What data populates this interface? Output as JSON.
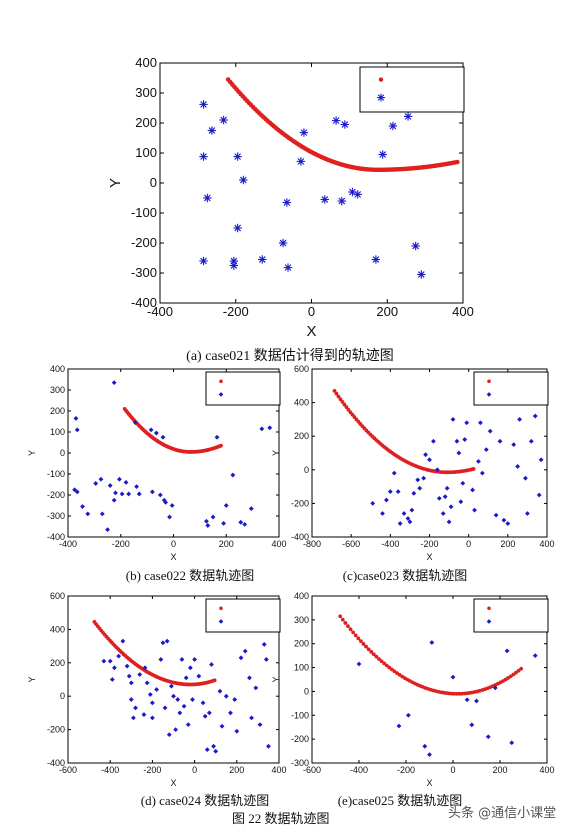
{
  "figure_caption": "图 22  数据轨迹图",
  "watermark": "头条 @通信小课堂",
  "colors": {
    "estimate": "#e02020",
    "sensor": "#1a1acc",
    "axis": "#000000"
  },
  "chart_data": [
    {
      "type": "scatter",
      "caption": "(a)   case021 数据估计得到的轨迹图",
      "xlabel": "X",
      "ylabel": "Y",
      "xlim": [
        -400,
        400
      ],
      "ylim": [
        -400,
        400
      ],
      "xticks": [
        -400,
        -200,
        0,
        200,
        400
      ],
      "yticks": [
        -400,
        -300,
        -200,
        -100,
        0,
        100,
        200,
        300,
        400
      ],
      "grid": false,
      "legend": "top-right",
      "legend_entries": [
        "",
        ""
      ],
      "trajectory": {
        "start": [
          -220,
          345
        ],
        "end": [
          385,
          70
        ],
        "min": [
          175,
          44
        ]
      },
      "points": [
        [
          -285,
          262
        ],
        [
          -263,
          175
        ],
        [
          -232,
          210
        ],
        [
          -285,
          88
        ],
        [
          -275,
          -50
        ],
        [
          -195,
          88
        ],
        [
          -180,
          10
        ],
        [
          -195,
          -150
        ],
        [
          -205,
          -260
        ],
        [
          -205,
          -275
        ],
        [
          -285,
          -260
        ],
        [
          -130,
          -255
        ],
        [
          -75,
          -200
        ],
        [
          -62,
          -282
        ],
        [
          -28,
          72
        ],
        [
          -20,
          168
        ],
        [
          -65,
          -65
        ],
        [
          35,
          -55
        ],
        [
          80,
          -60
        ],
        [
          65,
          208
        ],
        [
          88,
          195
        ],
        [
          108,
          -30
        ],
        [
          122,
          -38
        ],
        [
          170,
          -255
        ],
        [
          188,
          95
        ],
        [
          215,
          190
        ],
        [
          255,
          222
        ],
        [
          275,
          -210
        ],
        [
          290,
          -305
        ]
      ]
    },
    {
      "type": "scatter",
      "caption": "(b) case022 数据轨迹图",
      "xlabel": "X",
      "ylabel": "Y",
      "xlim": [
        -400,
        400
      ],
      "ylim": [
        -400,
        400
      ],
      "xticks": [
        -400,
        -200,
        0,
        200,
        400
      ],
      "yticks": [
        -400,
        -300,
        -200,
        -100,
        0,
        100,
        200,
        300,
        400
      ],
      "grid": false,
      "legend": "top-right",
      "legend_entries": [
        "",
        ""
      ],
      "trajectory": {
        "start": [
          -185,
          210
        ],
        "end": [
          180,
          35
        ],
        "min": [
          65,
          5
        ]
      },
      "points": [
        [
          -370,
          165
        ],
        [
          -365,
          110
        ],
        [
          -375,
          -175
        ],
        [
          -365,
          -185
        ],
        [
          -345,
          -255
        ],
        [
          -325,
          -290
        ],
        [
          -295,
          -145
        ],
        [
          -275,
          -125
        ],
        [
          -270,
          -290
        ],
        [
          -250,
          -365
        ],
        [
          -240,
          -155
        ],
        [
          -225,
          335
        ],
        [
          -225,
          -225
        ],
        [
          -220,
          -190
        ],
        [
          -205,
          -125
        ],
        [
          -195,
          -195
        ],
        [
          -180,
          -140
        ],
        [
          -170,
          -195
        ],
        [
          -145,
          145
        ],
        [
          -140,
          -160
        ],
        [
          -130,
          -195
        ],
        [
          -85,
          110
        ],
        [
          -80,
          -185
        ],
        [
          -50,
          -200
        ],
        [
          -30,
          -235
        ],
        [
          -15,
          -305
        ],
        [
          -35,
          -225
        ],
        [
          -5,
          -250
        ],
        [
          -65,
          95
        ],
        [
          -40,
          75
        ],
        [
          125,
          -325
        ],
        [
          130,
          -345
        ],
        [
          150,
          -305
        ],
        [
          165,
          75
        ],
        [
          190,
          -335
        ],
        [
          200,
          -250
        ],
        [
          225,
          -105
        ],
        [
          255,
          -330
        ],
        [
          270,
          -340
        ],
        [
          295,
          -265
        ],
        [
          335,
          115
        ],
        [
          365,
          120
        ]
      ]
    },
    {
      "type": "scatter",
      "caption": "(c)case023 数据轨迹图",
      "xlabel": "X",
      "ylabel": "Y",
      "xlim": [
        -800,
        400
      ],
      "ylim": [
        -400,
        600
      ],
      "xticks": [
        -800,
        -600,
        -400,
        -200,
        0,
        200,
        400
      ],
      "yticks": [
        -400,
        -200,
        0,
        200,
        400,
        600
      ],
      "grid": false,
      "legend": "top-right",
      "legend_entries": [
        "",
        ""
      ],
      "trajectory": {
        "start": [
          -685,
          470
        ],
        "end": [
          25,
          5
        ],
        "min": [
          -110,
          -15
        ]
      },
      "points": [
        [
          -490,
          -200
        ],
        [
          -440,
          -260
        ],
        [
          -420,
          -180
        ],
        [
          -400,
          -130
        ],
        [
          -380,
          -20
        ],
        [
          -360,
          -130
        ],
        [
          -350,
          -320
        ],
        [
          -330,
          -260
        ],
        [
          -310,
          -290
        ],
        [
          -300,
          -310
        ],
        [
          -290,
          -240
        ],
        [
          -280,
          -140
        ],
        [
          -260,
          -60
        ],
        [
          -250,
          -110
        ],
        [
          -230,
          -50
        ],
        [
          -220,
          90
        ],
        [
          -200,
          60
        ],
        [
          -180,
          170
        ],
        [
          -160,
          0
        ],
        [
          -150,
          -170
        ],
        [
          -130,
          -260
        ],
        [
          -120,
          -160
        ],
        [
          -110,
          -110
        ],
        [
          -100,
          -310
        ],
        [
          -90,
          -220
        ],
        [
          -80,
          300
        ],
        [
          -60,
          170
        ],
        [
          -50,
          100
        ],
        [
          -40,
          -190
        ],
        [
          -30,
          -80
        ],
        [
          -20,
          180
        ],
        [
          -10,
          280
        ],
        [
          20,
          -120
        ],
        [
          30,
          -240
        ],
        [
          50,
          50
        ],
        [
          60,
          280
        ],
        [
          70,
          -20
        ],
        [
          90,
          120
        ],
        [
          110,
          230
        ],
        [
          140,
          -270
        ],
        [
          160,
          170
        ],
        [
          180,
          -300
        ],
        [
          200,
          -320
        ],
        [
          230,
          150
        ],
        [
          250,
          20
        ],
        [
          260,
          300
        ],
        [
          290,
          -50
        ],
        [
          300,
          -260
        ],
        [
          320,
          170
        ],
        [
          340,
          320
        ],
        [
          360,
          -150
        ],
        [
          370,
          60
        ]
      ]
    },
    {
      "type": "scatter",
      "caption": "(d) case024 数据轨迹图",
      "xlabel": "X",
      "ylabel": "Y",
      "xlim": [
        -600,
        400
      ],
      "ylim": [
        -400,
        600
      ],
      "xticks": [
        -600,
        -400,
        -200,
        0,
        200,
        400
      ],
      "yticks": [
        -400,
        -200,
        0,
        200,
        400,
        600
      ],
      "grid": false,
      "legend": "top-right",
      "legend_entries": [
        "",
        ""
      ],
      "trajectory": {
        "start": [
          -475,
          445
        ],
        "end": [
          95,
          95
        ],
        "min": [
          -20,
          70
        ]
      },
      "points": [
        [
          -430,
          210
        ],
        [
          -400,
          210
        ],
        [
          -390,
          100
        ],
        [
          -380,
          170
        ],
        [
          -360,
          240
        ],
        [
          -340,
          330
        ],
        [
          -320,
          180
        ],
        [
          -310,
          120
        ],
        [
          -300,
          80
        ],
        [
          -300,
          -20
        ],
        [
          -290,
          -130
        ],
        [
          -280,
          -70
        ],
        [
          -260,
          130
        ],
        [
          -240,
          -110
        ],
        [
          -235,
          170
        ],
        [
          -225,
          80
        ],
        [
          -210,
          10
        ],
        [
          -200,
          -130
        ],
        [
          -200,
          -40
        ],
        [
          -180,
          40
        ],
        [
          -160,
          220
        ],
        [
          -150,
          320
        ],
        [
          -140,
          -70
        ],
        [
          -130,
          330
        ],
        [
          -120,
          -230
        ],
        [
          -110,
          60
        ],
        [
          -100,
          0
        ],
        [
          -90,
          -200
        ],
        [
          -80,
          -20
        ],
        [
          -70,
          -100
        ],
        [
          -60,
          220
        ],
        [
          -50,
          -60
        ],
        [
          -40,
          110
        ],
        [
          -30,
          -170
        ],
        [
          -20,
          170
        ],
        [
          -10,
          -20
        ],
        [
          0,
          220
        ],
        [
          20,
          120
        ],
        [
          40,
          -40
        ],
        [
          50,
          -120
        ],
        [
          60,
          -320
        ],
        [
          70,
          -100
        ],
        [
          80,
          190
        ],
        [
          90,
          -300
        ],
        [
          100,
          -330
        ],
        [
          120,
          30
        ],
        [
          130,
          -180
        ],
        [
          150,
          0
        ],
        [
          170,
          -100
        ],
        [
          190,
          -20
        ],
        [
          200,
          -210
        ],
        [
          220,
          230
        ],
        [
          240,
          270
        ],
        [
          260,
          110
        ],
        [
          270,
          -130
        ],
        [
          290,
          50
        ],
        [
          310,
          -170
        ],
        [
          330,
          310
        ],
        [
          340,
          220
        ],
        [
          350,
          -300
        ]
      ]
    },
    {
      "type": "scatter",
      "caption": "(e)case025 数据轨迹图",
      "xlabel": "X",
      "ylabel": "Y",
      "xlim": [
        -600,
        400
      ],
      "ylim": [
        -300,
        400
      ],
      "xticks": [
        -600,
        -400,
        -200,
        0,
        200,
        400
      ],
      "yticks": [
        -300,
        -200,
        -100,
        0,
        100,
        200,
        300,
        400
      ],
      "grid": false,
      "legend": "top-right",
      "legend_entries": [
        "",
        ""
      ],
      "trajectory": {
        "start": [
          -480,
          315
        ],
        "end": [
          290,
          95
        ],
        "min": [
          20,
          -10
        ]
      },
      "points": [
        [
          -400,
          115
        ],
        [
          -230,
          -145
        ],
        [
          -190,
          -100
        ],
        [
          -120,
          -230
        ],
        [
          -100,
          -265
        ],
        [
          -90,
          205
        ],
        [
          0,
          60
        ],
        [
          60,
          -35
        ],
        [
          80,
          -140
        ],
        [
          100,
          -40
        ],
        [
          150,
          -190
        ],
        [
          180,
          15
        ],
        [
          230,
          170
        ],
        [
          250,
          -215
        ],
        [
          350,
          150
        ]
      ]
    }
  ]
}
